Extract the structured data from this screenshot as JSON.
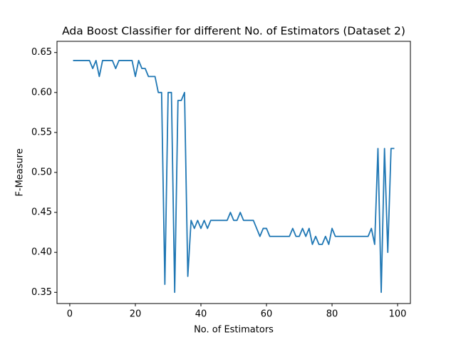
{
  "chart_data": {
    "type": "line",
    "title": "Ada Boost Classifier for different No. of Estimators (Dataset 2)",
    "x_label": "No. of Estimators",
    "y_label": "F-Measure",
    "color": "#1f77b4",
    "x": [
      1,
      2,
      3,
      4,
      5,
      6,
      7,
      8,
      9,
      10,
      11,
      12,
      13,
      14,
      15,
      16,
      17,
      18,
      19,
      20,
      21,
      22,
      23,
      24,
      25,
      26,
      27,
      28,
      29,
      30,
      31,
      32,
      33,
      34,
      35,
      36,
      37,
      38,
      39,
      40,
      41,
      42,
      43,
      44,
      45,
      46,
      47,
      48,
      49,
      50,
      51,
      52,
      53,
      54,
      55,
      56,
      57,
      58,
      59,
      60,
      61,
      62,
      63,
      64,
      65,
      66,
      67,
      68,
      69,
      70,
      71,
      72,
      73,
      74,
      75,
      76,
      77,
      78,
      79,
      80,
      81,
      82,
      83,
      84,
      85,
      86,
      87,
      88,
      89,
      90,
      91,
      92,
      93,
      94,
      95,
      96,
      97,
      98,
      99
    ],
    "values": [
      0.64,
      0.64,
      0.64,
      0.64,
      0.64,
      0.64,
      0.63,
      0.64,
      0.62,
      0.64,
      0.64,
      0.64,
      0.64,
      0.63,
      0.64,
      0.64,
      0.64,
      0.64,
      0.64,
      0.62,
      0.64,
      0.63,
      0.63,
      0.62,
      0.62,
      0.62,
      0.6,
      0.6,
      0.36,
      0.6,
      0.6,
      0.35,
      0.59,
      0.59,
      0.6,
      0.37,
      0.44,
      0.43,
      0.44,
      0.43,
      0.44,
      0.43,
      0.44,
      0.44,
      0.44,
      0.44,
      0.44,
      0.44,
      0.45,
      0.44,
      0.44,
      0.45,
      0.44,
      0.44,
      0.44,
      0.44,
      0.43,
      0.42,
      0.43,
      0.43,
      0.42,
      0.42,
      0.42,
      0.42,
      0.42,
      0.42,
      0.42,
      0.43,
      0.42,
      0.42,
      0.43,
      0.42,
      0.43,
      0.41,
      0.42,
      0.41,
      0.41,
      0.42,
      0.41,
      0.43,
      0.42,
      0.42,
      0.42,
      0.42,
      0.42,
      0.42,
      0.42,
      0.42,
      0.42,
      0.42,
      0.42,
      0.43,
      0.41,
      0.53,
      0.35,
      0.53,
      0.4,
      0.53,
      0.53
    ],
    "xlim": [
      -3.9,
      103.9
    ],
    "ylim": [
      0.336,
      0.664
    ],
    "xticks": [
      0,
      20,
      40,
      60,
      80,
      100
    ],
    "yticks": [
      0.35,
      {
        "value": 0.4,
        "label": "0.40"
      },
      0.45,
      {
        "value": 0.5,
        "label": "0.50"
      },
      0.55,
      {
        "value": 0.6,
        "label": "0.60"
      },
      0.65
    ]
  }
}
